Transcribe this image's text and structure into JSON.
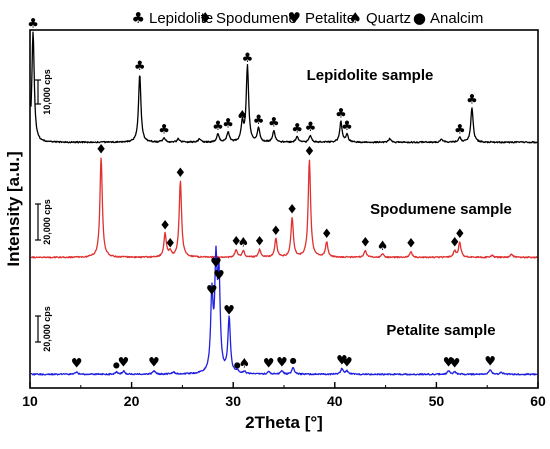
{
  "chart_data": {
    "type": "line",
    "xlabel": "2Theta [°]",
    "ylabel": "Intensity [a.u.]",
    "xlim": [
      10,
      60
    ],
    "x_ticks": [
      10,
      20,
      30,
      40,
      50,
      60
    ],
    "legend_position": "top",
    "legend": [
      {
        "symbol": "♣",
        "label": "Lepidolite"
      },
      {
        "symbol": "♦",
        "label": "Spodumene"
      },
      {
        "symbol": "♥",
        "label": "Petalite"
      },
      {
        "symbol": "♠",
        "label": "Quartz"
      },
      {
        "symbol": "●",
        "label": "Analcim"
      }
    ],
    "series": [
      {
        "name": "Lepidolite sample",
        "color": "#000000",
        "scale_bar": "10,000 cps",
        "peaks": [
          {
            "x": 10.3,
            "h": 0.96,
            "m": "♣"
          },
          {
            "x": 20.8,
            "h": 0.59,
            "m": "♣"
          },
          {
            "x": 23.2,
            "h": 0.04,
            "m": "♣"
          },
          {
            "x": 24.6,
            "h": 0.03,
            "m": ""
          },
          {
            "x": 26.7,
            "h": 0.03,
            "m": ""
          },
          {
            "x": 28.5,
            "h": 0.07,
            "m": "♣"
          },
          {
            "x": 29.5,
            "h": 0.09,
            "m": "♣"
          },
          {
            "x": 30.9,
            "h": 0.16,
            "m": "♠"
          },
          {
            "x": 31.4,
            "h": 0.66,
            "m": "♣"
          },
          {
            "x": 32.5,
            "h": 0.12,
            "m": "♣"
          },
          {
            "x": 34.0,
            "h": 0.1,
            "m": "♣"
          },
          {
            "x": 36.3,
            "h": 0.05,
            "m": "♣"
          },
          {
            "x": 37.6,
            "h": 0.06,
            "m": "♣"
          },
          {
            "x": 40.6,
            "h": 0.18,
            "m": "♣"
          },
          {
            "x": 41.2,
            "h": 0.07,
            "m": "♣"
          },
          {
            "x": 45.4,
            "h": 0.03,
            "m": ""
          },
          {
            "x": 50.5,
            "h": 0.03,
            "m": ""
          },
          {
            "x": 52.3,
            "h": 0.04,
            "m": "♣"
          },
          {
            "x": 53.5,
            "h": 0.3,
            "m": "♣"
          }
        ]
      },
      {
        "name": "Spodumene sample",
        "color": "#e03030",
        "scale_bar": "20,000 cps",
        "peaks": [
          {
            "x": 17.0,
            "h": 0.93,
            "m": "♦"
          },
          {
            "x": 23.3,
            "h": 0.22,
            "m": "♦"
          },
          {
            "x": 23.8,
            "h": 0.05,
            "m": "♦"
          },
          {
            "x": 24.8,
            "h": 0.71,
            "m": "♦"
          },
          {
            "x": 30.3,
            "h": 0.07,
            "m": "♦"
          },
          {
            "x": 31.0,
            "h": 0.06,
            "m": "♠"
          },
          {
            "x": 32.6,
            "h": 0.07,
            "m": "♦"
          },
          {
            "x": 34.2,
            "h": 0.17,
            "m": "♦"
          },
          {
            "x": 35.8,
            "h": 0.37,
            "m": "♦"
          },
          {
            "x": 37.5,
            "h": 0.91,
            "m": "♦"
          },
          {
            "x": 39.2,
            "h": 0.14,
            "m": "♦"
          },
          {
            "x": 43.0,
            "h": 0.06,
            "m": "♦"
          },
          {
            "x": 44.7,
            "h": 0.03,
            "m": "♠"
          },
          {
            "x": 47.5,
            "h": 0.05,
            "m": "♦"
          },
          {
            "x": 51.8,
            "h": 0.06,
            "m": "♦"
          },
          {
            "x": 52.3,
            "h": 0.14,
            "m": "♦"
          },
          {
            "x": 55.5,
            "h": 0.02,
            "m": ""
          },
          {
            "x": 57.4,
            "h": 0.03,
            "m": ""
          }
        ]
      },
      {
        "name": "Petalite sample",
        "color": "#1f1fe0",
        "scale_bar": "20,000 cps",
        "peaks": [
          {
            "x": 14.6,
            "h": 0.02,
            "m": "♥"
          },
          {
            "x": 18.5,
            "h": 0.02,
            "m": "●"
          },
          {
            "x": 19.2,
            "h": 0.03,
            "m": "♥"
          },
          {
            "x": 22.2,
            "h": 0.03,
            "m": "♥"
          },
          {
            "x": 24.1,
            "h": 0.02,
            "m": ""
          },
          {
            "x": 27.9,
            "h": 0.67,
            "m": "♥"
          },
          {
            "x": 28.3,
            "h": 0.91,
            "m": "♥"
          },
          {
            "x": 28.6,
            "h": 0.8,
            "m": "♥"
          },
          {
            "x": 29.6,
            "h": 0.49,
            "m": "♥"
          },
          {
            "x": 30.4,
            "h": 0.02,
            "m": "●"
          },
          {
            "x": 31.1,
            "h": 0.02,
            "m": "♠"
          },
          {
            "x": 33.5,
            "h": 0.02,
            "m": "♥"
          },
          {
            "x": 34.8,
            "h": 0.03,
            "m": "♥"
          },
          {
            "x": 35.9,
            "h": 0.06,
            "m": "●"
          },
          {
            "x": 40.7,
            "h": 0.05,
            "m": "♥"
          },
          {
            "x": 41.2,
            "h": 0.03,
            "m": "♥"
          },
          {
            "x": 51.2,
            "h": 0.03,
            "m": "♥"
          },
          {
            "x": 51.8,
            "h": 0.02,
            "m": "♥"
          },
          {
            "x": 55.3,
            "h": 0.04,
            "m": "♥"
          },
          {
            "x": 56.4,
            "h": 0.02,
            "m": ""
          }
        ]
      }
    ]
  }
}
